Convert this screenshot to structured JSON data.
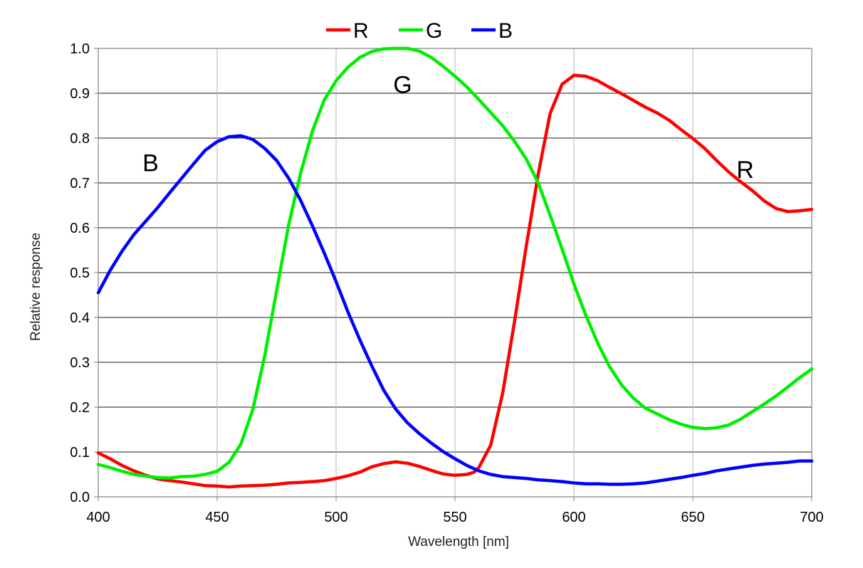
{
  "chart_data": {
    "type": "line",
    "xlabel": "Wavelength [nm]",
    "ylabel": "Relative response",
    "xlim": [
      400,
      700
    ],
    "ylim": [
      0.0,
      1.0
    ],
    "xticks": [
      "400",
      "450",
      "500",
      "550",
      "600",
      "650",
      "700"
    ],
    "yticks": [
      "0.0",
      "0.1",
      "0.2",
      "0.3",
      "0.4",
      "0.5",
      "0.6",
      "0.7",
      "0.8",
      "0.9",
      "1.0"
    ],
    "grid": true,
    "legend_position": "top-center",
    "series": [
      {
        "name": "R",
        "color": "#ff0000",
        "points": [
          [
            400,
            0.098
          ],
          [
            405,
            0.085
          ],
          [
            410,
            0.07
          ],
          [
            415,
            0.058
          ],
          [
            420,
            0.048
          ],
          [
            425,
            0.04
          ],
          [
            430,
            0.036
          ],
          [
            435,
            0.033
          ],
          [
            440,
            0.029
          ],
          [
            445,
            0.025
          ],
          [
            450,
            0.024
          ],
          [
            455,
            0.022
          ],
          [
            460,
            0.024
          ],
          [
            465,
            0.025
          ],
          [
            470,
            0.026
          ],
          [
            475,
            0.028
          ],
          [
            480,
            0.031
          ],
          [
            485,
            0.032
          ],
          [
            490,
            0.034
          ],
          [
            495,
            0.036
          ],
          [
            500,
            0.041
          ],
          [
            505,
            0.047
          ],
          [
            510,
            0.055
          ],
          [
            515,
            0.067
          ],
          [
            520,
            0.074
          ],
          [
            525,
            0.078
          ],
          [
            530,
            0.075
          ],
          [
            535,
            0.068
          ],
          [
            540,
            0.059
          ],
          [
            545,
            0.051
          ],
          [
            550,
            0.048
          ],
          [
            555,
            0.05
          ],
          [
            558,
            0.055
          ],
          [
            560,
            0.065
          ],
          [
            565,
            0.115
          ],
          [
            570,
            0.23
          ],
          [
            575,
            0.39
          ],
          [
            580,
            0.56
          ],
          [
            585,
            0.72
          ],
          [
            590,
            0.855
          ],
          [
            595,
            0.92
          ],
          [
            600,
            0.94
          ],
          [
            605,
            0.938
          ],
          [
            610,
            0.928
          ],
          [
            615,
            0.913
          ],
          [
            620,
            0.899
          ],
          [
            625,
            0.884
          ],
          [
            630,
            0.869
          ],
          [
            635,
            0.856
          ],
          [
            640,
            0.84
          ],
          [
            645,
            0.819
          ],
          [
            650,
            0.799
          ],
          [
            655,
            0.777
          ],
          [
            660,
            0.75
          ],
          [
            665,
            0.725
          ],
          [
            670,
            0.703
          ],
          [
            675,
            0.683
          ],
          [
            680,
            0.66
          ],
          [
            685,
            0.643
          ],
          [
            690,
            0.636
          ],
          [
            695,
            0.638
          ],
          [
            700,
            0.641
          ]
        ]
      },
      {
        "name": "G",
        "color": "#00ee00",
        "points": [
          [
            400,
            0.072
          ],
          [
            405,
            0.065
          ],
          [
            410,
            0.057
          ],
          [
            415,
            0.05
          ],
          [
            420,
            0.046
          ],
          [
            425,
            0.043
          ],
          [
            430,
            0.042
          ],
          [
            435,
            0.045
          ],
          [
            440,
            0.046
          ],
          [
            445,
            0.05
          ],
          [
            450,
            0.057
          ],
          [
            455,
            0.077
          ],
          [
            460,
            0.118
          ],
          [
            465,
            0.195
          ],
          [
            470,
            0.315
          ],
          [
            475,
            0.46
          ],
          [
            480,
            0.605
          ],
          [
            485,
            0.72
          ],
          [
            490,
            0.815
          ],
          [
            495,
            0.885
          ],
          [
            500,
            0.928
          ],
          [
            505,
            0.958
          ],
          [
            510,
            0.98
          ],
          [
            515,
            0.993
          ],
          [
            520,
            0.999
          ],
          [
            525,
            1.0
          ],
          [
            530,
            1.0
          ],
          [
            535,
            0.994
          ],
          [
            540,
            0.98
          ],
          [
            545,
            0.96
          ],
          [
            550,
            0.938
          ],
          [
            555,
            0.914
          ],
          [
            560,
            0.886
          ],
          [
            565,
            0.857
          ],
          [
            570,
            0.828
          ],
          [
            575,
            0.793
          ],
          [
            580,
            0.753
          ],
          [
            585,
            0.7
          ],
          [
            590,
            0.628
          ],
          [
            595,
            0.553
          ],
          [
            600,
            0.475
          ],
          [
            605,
            0.405
          ],
          [
            610,
            0.343
          ],
          [
            615,
            0.29
          ],
          [
            620,
            0.25
          ],
          [
            625,
            0.22
          ],
          [
            630,
            0.198
          ],
          [
            635,
            0.185
          ],
          [
            640,
            0.172
          ],
          [
            645,
            0.162
          ],
          [
            650,
            0.155
          ],
          [
            655,
            0.152
          ],
          [
            660,
            0.154
          ],
          [
            665,
            0.16
          ],
          [
            670,
            0.173
          ],
          [
            675,
            0.19
          ],
          [
            680,
            0.207
          ],
          [
            685,
            0.225
          ],
          [
            690,
            0.245
          ],
          [
            695,
            0.266
          ],
          [
            700,
            0.285
          ]
        ]
      },
      {
        "name": "B",
        "color": "#0000ff",
        "points": [
          [
            400,
            0.455
          ],
          [
            405,
            0.505
          ],
          [
            410,
            0.548
          ],
          [
            415,
            0.585
          ],
          [
            420,
            0.615
          ],
          [
            425,
            0.645
          ],
          [
            430,
            0.678
          ],
          [
            435,
            0.71
          ],
          [
            440,
            0.742
          ],
          [
            445,
            0.773
          ],
          [
            450,
            0.792
          ],
          [
            455,
            0.803
          ],
          [
            460,
            0.805
          ],
          [
            465,
            0.797
          ],
          [
            470,
            0.777
          ],
          [
            475,
            0.75
          ],
          [
            480,
            0.711
          ],
          [
            485,
            0.662
          ],
          [
            490,
            0.605
          ],
          [
            495,
            0.544
          ],
          [
            500,
            0.48
          ],
          [
            505,
            0.412
          ],
          [
            510,
            0.35
          ],
          [
            515,
            0.292
          ],
          [
            520,
            0.238
          ],
          [
            525,
            0.196
          ],
          [
            530,
            0.165
          ],
          [
            535,
            0.141
          ],
          [
            540,
            0.12
          ],
          [
            545,
            0.101
          ],
          [
            550,
            0.085
          ],
          [
            555,
            0.07
          ],
          [
            560,
            0.058
          ],
          [
            565,
            0.05
          ],
          [
            570,
            0.045
          ],
          [
            575,
            0.043
          ],
          [
            580,
            0.041
          ],
          [
            585,
            0.038
          ],
          [
            590,
            0.036
          ],
          [
            595,
            0.034
          ],
          [
            600,
            0.031
          ],
          [
            605,
            0.029
          ],
          [
            610,
            0.029
          ],
          [
            615,
            0.028
          ],
          [
            620,
            0.028
          ],
          [
            625,
            0.029
          ],
          [
            630,
            0.031
          ],
          [
            635,
            0.035
          ],
          [
            640,
            0.039
          ],
          [
            645,
            0.043
          ],
          [
            650,
            0.048
          ],
          [
            655,
            0.052
          ],
          [
            660,
            0.058
          ],
          [
            665,
            0.062
          ],
          [
            670,
            0.066
          ],
          [
            675,
            0.07
          ],
          [
            680,
            0.073
          ],
          [
            685,
            0.075
          ],
          [
            690,
            0.077
          ],
          [
            695,
            0.08
          ],
          [
            700,
            0.08
          ]
        ]
      }
    ],
    "legend": [
      {
        "label": "R",
        "color": "#ff0000"
      },
      {
        "label": "G",
        "color": "#00ee00"
      },
      {
        "label": "B",
        "color": "#0000ff"
      }
    ],
    "annotations": [
      {
        "text": "B",
        "x": 422,
        "y": 0.745
      },
      {
        "text": "G",
        "x": 528,
        "y": 0.92
      },
      {
        "text": "R",
        "x": 672,
        "y": 0.73
      }
    ]
  }
}
